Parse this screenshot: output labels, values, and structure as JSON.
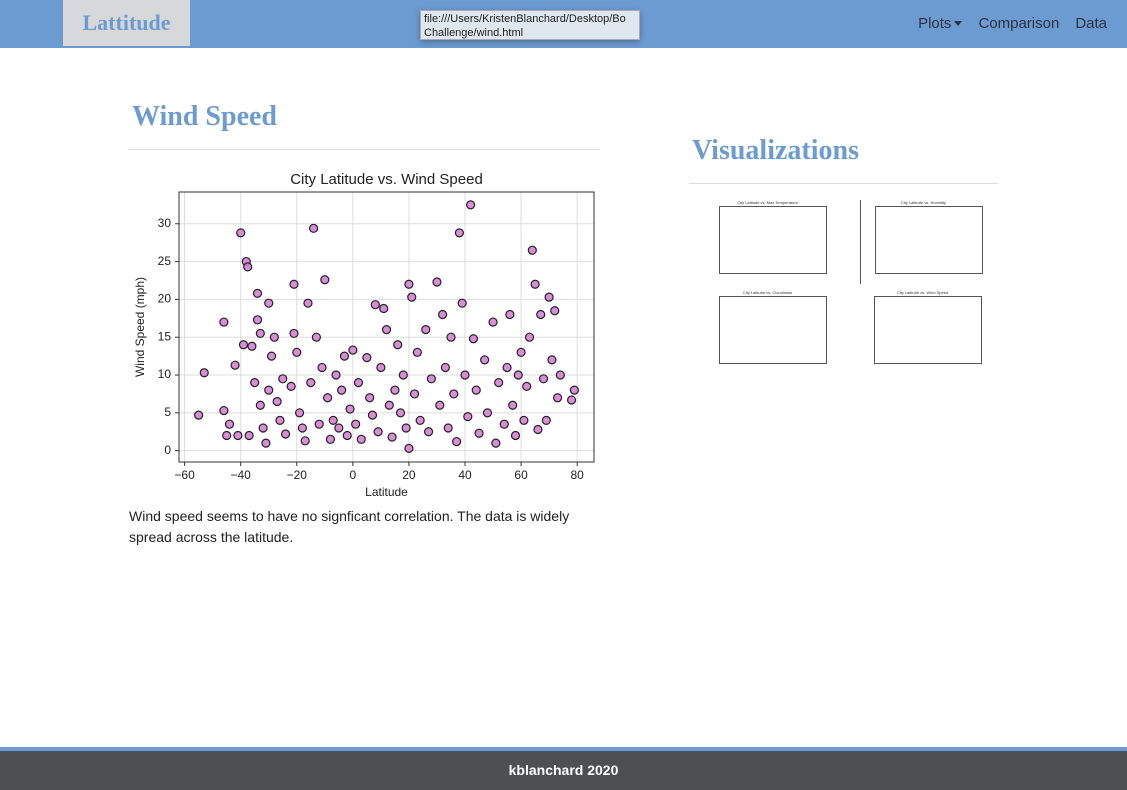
{
  "navbar": {
    "brand": "Lattitude",
    "tooltip": "file:///Users/KristenBlanchard/Desktop/Bo Challenge/wind.html",
    "links": [
      "Plots",
      "Comparison",
      "Data"
    ]
  },
  "main": {
    "heading": "Wind Speed",
    "description": "Wind speed seems to have no signficant correlation. The data is widely spread across the latitude."
  },
  "chart_data": {
    "type": "scatter",
    "title": "City Latitude vs. Wind Speed",
    "xlabel": "Latitude",
    "ylabel": "Wind Speed (mph)",
    "color": "#d77fd4",
    "edgecolor": "#222222",
    "grid": true,
    "xlim": [
      -62,
      86
    ],
    "ylim": [
      -1.5,
      34.2
    ],
    "xticks": [
      {
        "value": -60,
        "label": "−60"
      },
      {
        "value": -40,
        "label": "−40"
      },
      {
        "value": -20,
        "label": "−20"
      },
      0,
      20,
      40,
      60,
      80
    ],
    "yticks": [
      0,
      5,
      10,
      15,
      20,
      25,
      30
    ],
    "x": [
      -55,
      -53,
      -46,
      -46,
      -45,
      -44,
      -42,
      -41,
      -40,
      -39,
      -38,
      -37.5,
      -37,
      -36,
      -35,
      -34,
      -34,
      -33,
      -33,
      -32,
      -31,
      -30,
      -30,
      -29,
      -28,
      -27,
      -26,
      -25,
      -24,
      -22,
      -21,
      -21,
      -20,
      -19,
      -18,
      -17,
      -16,
      -15,
      -14,
      -13,
      -12,
      -11,
      -10,
      -9,
      -8,
      -7,
      -6,
      -5,
      -4,
      -3,
      -2,
      -1,
      0,
      1,
      2,
      3,
      5,
      6,
      7,
      8,
      9,
      10,
      11,
      12,
      13,
      14,
      15,
      16,
      17,
      18,
      19,
      20,
      20,
      21,
      22,
      23,
      24,
      26,
      27,
      28,
      30,
      31,
      32,
      33,
      34,
      35,
      36,
      37,
      38,
      39,
      40,
      41,
      42,
      43,
      44,
      45,
      47,
      48,
      50,
      51,
      52,
      54,
      55,
      56,
      57,
      58,
      59,
      60,
      61,
      62,
      63,
      64,
      65,
      66,
      67,
      68,
      69,
      70,
      71,
      72,
      73,
      74,
      78,
      79
    ],
    "values": [
      4.7,
      10.3,
      17,
      5.3,
      2,
      3.5,
      11.3,
      2,
      28.8,
      14,
      25,
      24.3,
      2,
      13.8,
      9,
      20.8,
      17.3,
      15.5,
      6,
      3,
      1,
      19.5,
      8,
      12.5,
      15,
      6.5,
      4,
      9.5,
      2.2,
      8.5,
      22,
      15.5,
      13,
      5,
      3,
      1.3,
      19.5,
      9,
      29.4,
      15,
      3.5,
      11,
      22.6,
      7,
      1.5,
      4,
      10,
      3,
      8,
      12.5,
      2,
      5.5,
      13.3,
      3.5,
      9,
      1.5,
      12.3,
      7,
      4.7,
      19.3,
      2.5,
      11,
      18.8,
      16,
      6,
      1.8,
      8,
      14,
      5,
      10,
      3,
      22,
      0.3,
      20.3,
      7.5,
      13,
      4,
      16,
      2.5,
      9.5,
      22.3,
      6,
      18,
      11,
      3,
      15,
      7.5,
      1.2,
      28.8,
      19.5,
      10,
      4.5,
      32.5,
      14.8,
      8,
      2.3,
      12,
      5,
      17,
      1,
      9,
      3.5,
      11,
      18,
      6,
      2,
      10,
      13,
      4,
      8.5,
      15,
      26.5,
      22,
      2.8,
      18,
      9.5,
      4,
      20.3,
      12,
      18.5,
      7,
      10,
      6.7,
      8
    ]
  },
  "sidebar": {
    "heading": "Visualizations",
    "thumbnails": [
      "City Latitude vs. Max Temperature",
      "City Latitude vs. Humidity",
      "City Latitude vs. Cloudiness",
      "City Latitude vs. Wind Speed"
    ]
  },
  "footer": {
    "text": "kblanchard 2020"
  }
}
